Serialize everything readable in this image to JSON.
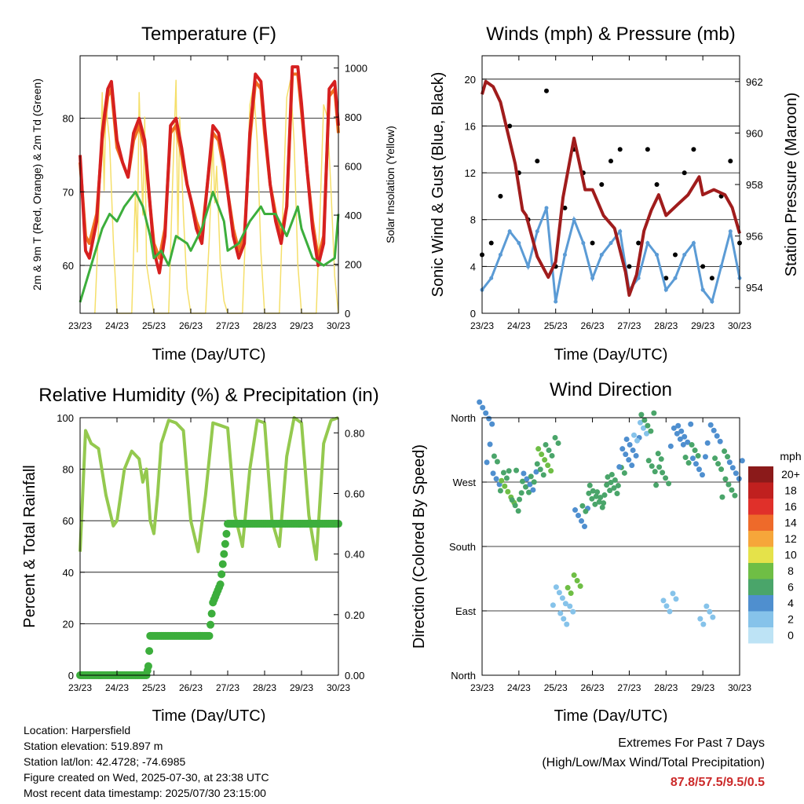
{
  "chart_data": [
    {
      "type": "line",
      "title": "Temperature (F)",
      "xlabel": "Time (Day/UTC)",
      "ylabel": "2m & 9m T (Red, Orange) & 2m Td (Green)",
      "y2label": "Solar Insolation (Yellow)",
      "x_ticks": [
        "23/23",
        "24/23",
        "25/23",
        "26/23",
        "27/23",
        "28/23",
        "29/23",
        "30/23"
      ],
      "ylim": [
        53.5,
        88.5
      ],
      "yticks": [
        60,
        70,
        80
      ],
      "y2lim": [
        0,
        1050
      ],
      "y2ticks": [
        0,
        200,
        400,
        600,
        800,
        1000
      ],
      "grid": true,
      "series": [
        {
          "name": "2m T",
          "color": "#d62020",
          "axis": "left",
          "x": [
            0,
            0.15,
            0.25,
            0.45,
            0.6,
            0.75,
            0.85,
            1.0,
            1.15,
            1.3,
            1.45,
            1.6,
            1.75,
            1.9,
            2.0,
            2.15,
            2.3,
            2.45,
            2.6,
            2.75,
            2.9,
            3.0,
            3.15,
            3.3,
            3.45,
            3.6,
            3.75,
            3.9,
            4.0,
            4.15,
            4.3,
            4.45,
            4.6,
            4.75,
            4.9,
            5.0,
            5.15,
            5.3,
            5.45,
            5.6,
            5.75,
            5.9,
            6.0,
            6.15,
            6.3,
            6.45,
            6.6,
            6.75,
            6.9,
            7.0
          ],
          "values": [
            75,
            62,
            61,
            66,
            78,
            84,
            85,
            77,
            74,
            72,
            78,
            80,
            77,
            68,
            62,
            59,
            64,
            79,
            80,
            76,
            71,
            69,
            65,
            63,
            71,
            79,
            78,
            74,
            70,
            64,
            61,
            63,
            78,
            86,
            85,
            79,
            71,
            66,
            63,
            68,
            87,
            87,
            82,
            73,
            65,
            60,
            63,
            84,
            85,
            79
          ]
        },
        {
          "name": "9m T",
          "color": "#f07020",
          "axis": "left",
          "x": [
            0,
            0.15,
            0.25,
            0.45,
            0.6,
            0.75,
            0.85,
            1.0,
            1.15,
            1.3,
            1.45,
            1.6,
            1.75,
            1.9,
            2.0,
            2.15,
            2.3,
            2.45,
            2.6,
            2.75,
            2.9,
            3.0,
            3.15,
            3.3,
            3.45,
            3.6,
            3.75,
            3.9,
            4.0,
            4.15,
            4.3,
            4.45,
            4.6,
            4.75,
            4.9,
            5.0,
            5.15,
            5.3,
            5.45,
            5.6,
            5.75,
            5.9,
            6.0,
            6.15,
            6.3,
            6.45,
            6.6,
            6.75,
            6.9,
            7.0
          ],
          "values": [
            74,
            64,
            63,
            67,
            77,
            83,
            84,
            76,
            74,
            72,
            77,
            79,
            76,
            68,
            63,
            61,
            65,
            78,
            79,
            75,
            71,
            69,
            66,
            64,
            71,
            78,
            77,
            73,
            70,
            65,
            62,
            64,
            77,
            85,
            84,
            78,
            71,
            67,
            64,
            68,
            86,
            86,
            81,
            73,
            66,
            61,
            64,
            83,
            84,
            78
          ]
        },
        {
          "name": "2m Td",
          "color": "#3cae3c",
          "axis": "left",
          "x": [
            0,
            0.3,
            0.6,
            0.8,
            1.0,
            1.2,
            1.5,
            1.7,
            1.9,
            2.0,
            2.2,
            2.4,
            2.6,
            2.9,
            3.0,
            3.3,
            3.6,
            3.9,
            4.0,
            4.3,
            4.6,
            4.9,
            5.0,
            5.3,
            5.6,
            5.9,
            6.0,
            6.3,
            6.6,
            6.9,
            7.0
          ],
          "values": [
            55,
            60,
            65,
            67,
            66,
            68,
            70,
            68,
            64,
            61,
            62,
            60,
            64,
            63,
            62,
            65,
            70,
            66,
            62,
            63,
            66,
            68,
            67,
            67,
            64,
            68,
            65,
            61,
            60,
            61,
            67
          ]
        },
        {
          "name": "Solar Insolation",
          "color": "#f5df6a",
          "axis": "right",
          "x": [
            0.4,
            0.5,
            0.55,
            0.6,
            0.65,
            0.7,
            0.8,
            0.9,
            1.0,
            1.4,
            1.5,
            1.55,
            1.6,
            1.7,
            1.75,
            1.8,
            1.9,
            2.0,
            2.4,
            2.5,
            2.6,
            2.65,
            2.7,
            2.8,
            2.9,
            3.0,
            3.4,
            3.5,
            3.6,
            3.65,
            3.7,
            3.8,
            3.9,
            4.0,
            4.4,
            4.5,
            4.6,
            4.7,
            4.8,
            4.9,
            5.0,
            5.4,
            5.5,
            5.6,
            5.7,
            5.8,
            5.9,
            6.0,
            6.4,
            6.5,
            6.6,
            6.7,
            6.8,
            6.9,
            7.0
          ],
          "values": [
            0,
            350,
            600,
            900,
            500,
            850,
            700,
            300,
            0,
            0,
            500,
            250,
            900,
            400,
            800,
            200,
            100,
            0,
            0,
            500,
            950,
            300,
            800,
            400,
            100,
            0,
            0,
            300,
            700,
            450,
            600,
            200,
            50,
            0,
            0,
            400,
            850,
            930,
            700,
            250,
            0,
            0,
            450,
            880,
            950,
            700,
            200,
            0,
            0,
            400,
            850,
            800,
            500,
            150,
            0
          ]
        }
      ]
    },
    {
      "type": "scatter",
      "title": "Winds (mph) & Pressure (mb)",
      "xlabel": "Time (Day/UTC)",
      "ylabel": "Sonic Wind & Gust (Blue, Black)",
      "y2label": "Station Pressure (Maroon)",
      "x_ticks": [
        "23/23",
        "24/23",
        "25/23",
        "26/23",
        "27/23",
        "28/23",
        "29/23",
        "30/23"
      ],
      "ylim": [
        0,
        22
      ],
      "yticks": [
        0,
        4,
        8,
        12,
        16,
        20
      ],
      "y2lim": [
        953.0,
        963.0
      ],
      "y2ticks": [
        954,
        956,
        958,
        960,
        962
      ],
      "grid": true,
      "series": [
        {
          "name": "Sonic Wind",
          "color": "#5b9bd5",
          "axis": "left",
          "x": [
            0,
            0.25,
            0.5,
            0.75,
            1.0,
            1.25,
            1.5,
            1.75,
            2.0,
            2.25,
            2.5,
            2.75,
            3.0,
            3.25,
            3.5,
            3.75,
            4.0,
            4.25,
            4.5,
            4.75,
            5.0,
            5.25,
            5.5,
            5.75,
            6.0,
            6.25,
            6.5,
            6.75,
            7.0
          ],
          "values": [
            2,
            3,
            5,
            7,
            6,
            4,
            7,
            9,
            1,
            5,
            8,
            6,
            3,
            5,
            6,
            7,
            2,
            3,
            6,
            5,
            2,
            3,
            5,
            6,
            2,
            1,
            4,
            7,
            3
          ]
        },
        {
          "name": "Gust",
          "color": "#000000",
          "axis": "left",
          "x": [
            0,
            0.25,
            0.5,
            0.75,
            1.0,
            1.25,
            1.5,
            1.75,
            2.0,
            2.25,
            2.5,
            2.75,
            3.0,
            3.25,
            3.5,
            3.75,
            4.0,
            4.25,
            4.5,
            4.75,
            5.0,
            5.25,
            5.5,
            5.75,
            6.0,
            6.25,
            6.5,
            6.75,
            7.0
          ],
          "values": [
            5,
            6,
            10,
            16,
            12,
            8,
            13,
            19,
            4,
            9,
            14,
            12,
            6,
            11,
            13,
            14,
            4,
            6,
            14,
            11,
            3,
            5,
            12,
            14,
            4,
            3,
            10,
            13,
            6
          ]
        },
        {
          "name": "Station Pressure",
          "color": "#a01c1c",
          "axis": "right",
          "x": [
            0,
            0.1,
            0.3,
            0.5,
            0.7,
            0.9,
            1.1,
            1.2,
            1.5,
            1.8,
            2.0,
            2.2,
            2.5,
            2.65,
            2.8,
            3.0,
            3.3,
            3.6,
            3.9,
            4.0,
            4.2,
            4.4,
            4.6,
            4.8,
            5.0,
            5.3,
            5.6,
            5.9,
            6.0,
            6.3,
            6.6,
            6.8,
            7.0
          ],
          "values": [
            961.5,
            962.0,
            961.8,
            961.2,
            960.0,
            958.8,
            957.0,
            956.8,
            955.2,
            954.4,
            955.0,
            957.5,
            959.8,
            958.8,
            957.8,
            957.8,
            956.8,
            956.3,
            954.6,
            953.7,
            954.5,
            956.2,
            957.0,
            957.6,
            956.8,
            957.2,
            957.6,
            958.3,
            957.6,
            957.8,
            957.6,
            957.1,
            956.1
          ]
        }
      ]
    },
    {
      "type": "line",
      "title": "Relative Humidity (%) & Precipitation (in)",
      "xlabel": "Time (Day/UTC)",
      "ylabel": "Percent & Total Rainfall",
      "x_ticks": [
        "23/23",
        "24/23",
        "25/23",
        "26/23",
        "27/23",
        "28/23",
        "29/23",
        "30/23"
      ],
      "ylim": [
        0,
        100
      ],
      "yticks": [
        0,
        20,
        40,
        60,
        80,
        100
      ],
      "y2lim": [
        0,
        0.85
      ],
      "y2ticks": [
        "0.00",
        "0.20",
        "0.40",
        "0.60",
        "0.80"
      ],
      "grid": true,
      "series": [
        {
          "name": "Relative Humidity",
          "color": "#94c94f",
          "axis": "left",
          "x": [
            0,
            0.15,
            0.3,
            0.5,
            0.7,
            0.9,
            1.0,
            1.2,
            1.4,
            1.6,
            1.7,
            1.8,
            1.9,
            2.0,
            2.1,
            2.2,
            2.4,
            2.6,
            2.8,
            3.0,
            3.2,
            3.4,
            3.6,
            3.8,
            4.0,
            4.2,
            4.4,
            4.6,
            4.8,
            5.0,
            5.2,
            5.4,
            5.6,
            5.8,
            6.0,
            6.2,
            6.4,
            6.6,
            6.8,
            7.0
          ],
          "values": [
            48,
            95,
            90,
            88,
            70,
            58,
            60,
            80,
            87,
            84,
            75,
            80,
            60,
            55,
            70,
            90,
            99,
            98,
            95,
            60,
            48,
            70,
            98,
            97,
            96,
            62,
            50,
            80,
            99,
            98,
            60,
            50,
            85,
            100,
            98,
            62,
            45,
            90,
            99,
            100
          ]
        },
        {
          "name": "Total Rainfall",
          "color": "#3cae3c",
          "axis": "right",
          "x": [
            0,
            1.8,
            1.85,
            1.9,
            2.0,
            3.0,
            3.5,
            3.6,
            3.7,
            3.8,
            3.9,
            4.0,
            4.2,
            5.0,
            6.0,
            7.0
          ],
          "values": [
            0.0,
            0.0,
            0.03,
            0.13,
            0.13,
            0.13,
            0.13,
            0.24,
            0.27,
            0.3,
            0.4,
            0.5,
            0.5,
            0.5,
            0.5,
            0.5
          ]
        }
      ]
    },
    {
      "type": "scatter",
      "title": "Wind Direction",
      "xlabel": "Time (Day/UTC)",
      "ylabel": "Direction (Colored By Speed)",
      "x_ticks": [
        "23/23",
        "24/23",
        "25/23",
        "26/23",
        "27/23",
        "28/23",
        "29/23",
        "30/23"
      ],
      "yticks": [
        "North",
        "East",
        "South",
        "West",
        "North"
      ],
      "ylim": [
        0,
        360
      ],
      "grid": true,
      "colorbar": {
        "title": "mph",
        "labels": [
          "0",
          "2",
          "4",
          "6",
          "8",
          "10",
          "12",
          "14",
          "16",
          "18",
          "20+"
        ],
        "colors": [
          "#bde3f5",
          "#86c3ea",
          "#4f8fcf",
          "#4aa56a",
          "#6fbe45",
          "#e5e24a",
          "#f6a63a",
          "#ee6a2a",
          "#e0302a",
          "#c0201f",
          "#8b1a1a"
        ]
      },
      "series": [
        {
          "name": "points",
          "x": [
            0.1,
            0.3,
            0.5,
            0.7,
            0.9,
            1.1,
            1.3,
            1.5,
            1.7,
            1.9,
            2.1,
            2.3,
            2.5,
            2.7,
            2.9,
            3.1,
            3.3,
            3.5,
            3.7,
            3.9,
            4.1,
            4.3,
            4.5,
            4.7,
            4.9,
            5.1,
            5.3,
            5.5,
            5.7,
            5.9,
            6.1,
            6.3,
            6.5,
            6.7,
            6.9
          ],
          "values": [
            350,
            280,
            270,
            250,
            245,
            260,
            270,
            280,
            300,
            320,
            110,
            80,
            130,
            220,
            240,
            250,
            255,
            265,
            275,
            300,
            320,
            340,
            350,
            300,
            280,
            100,
            330,
            340,
            310,
            290,
            80,
            340,
            300,
            260,
            290
          ],
          "speed": [
            3,
            4,
            6,
            7,
            6,
            5,
            4,
            6,
            7,
            5,
            2,
            2,
            7,
            4,
            5,
            5,
            6,
            5,
            5,
            4,
            3,
            2,
            5,
            6,
            5,
            2,
            3,
            4,
            6,
            4,
            2,
            3,
            6,
            5,
            4
          ]
        }
      ]
    }
  ],
  "info": {
    "location": "Location: Harpersfield",
    "elevation": "Station elevation: 519.897 m",
    "latlon": "Station lat/lon: 42.4728; -74.6985",
    "created": "Figure created on Wed, 2025-07-30, at 23:38 UTC",
    "recent": "Most recent data timestamp: 2025/07/30 23:15:00"
  },
  "extremes": {
    "title": "Extremes For Past 7 Days",
    "subtitle": "(High/Low/Max Wind/Total Precipitation)",
    "value": "87.8/57.5/9.5/0.5"
  }
}
